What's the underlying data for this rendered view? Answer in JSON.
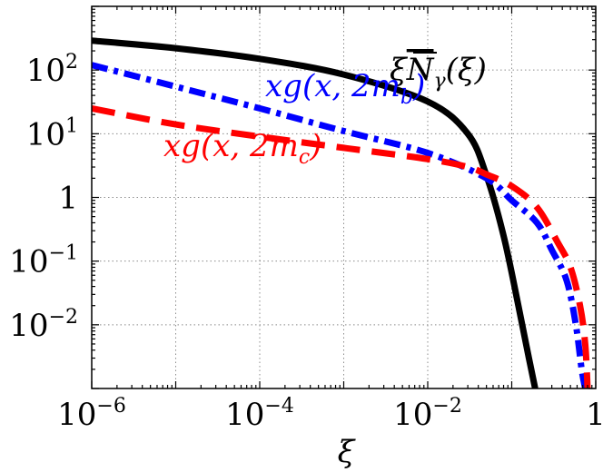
{
  "chart_data": {
    "type": "line",
    "xscale": "log",
    "yscale": "log",
    "xlim": [
      1e-06,
      1
    ],
    "ylim": [
      0.001,
      1000
    ],
    "grid": true,
    "xlabel": "ξ",
    "ylabel": "",
    "x_ticks": [
      {
        "value": 1e-06,
        "base": "10",
        "exp": "−6"
      },
      {
        "value": 0.0001,
        "base": "10",
        "exp": "−4"
      },
      {
        "value": 0.01,
        "base": "10",
        "exp": "−2"
      },
      {
        "value": 1,
        "base": "1",
        "exp": ""
      }
    ],
    "y_ticks": [
      {
        "value": 0.01,
        "base": "10",
        "exp": "−2"
      },
      {
        "value": 0.1,
        "base": "10",
        "exp": "−1"
      },
      {
        "value": 1,
        "base": "1",
        "exp": ""
      },
      {
        "value": 10,
        "base": "10",
        "exp": "1"
      },
      {
        "value": 100,
        "base": "10",
        "exp": "2"
      }
    ],
    "series": [
      {
        "label_parts": {
          "pre": "ξ",
          "over": "N",
          "sub": "γ",
          "post": "(ξ)"
        },
        "color": "#000000",
        "style": "solid",
        "x": [
          1e-06,
          1e-05,
          0.0001,
          0.001,
          0.01,
          0.03,
          0.05,
          0.08,
          0.12,
          0.16,
          0.19
        ],
        "y": [
          290,
          220,
          150,
          85,
          32,
          10,
          2.2,
          0.25,
          0.02,
          0.003,
          0.001
        ]
      },
      {
        "label_parts": {
          "pre": "xg(x, 2m",
          "sub": "b",
          "post": ")"
        },
        "color": "#0000ff",
        "style": "dashdot",
        "x": [
          1e-06,
          1e-05,
          0.0001,
          0.001,
          0.01,
          0.05,
          0.1,
          0.2,
          0.3,
          0.45,
          0.58,
          0.68,
          0.75
        ],
        "y": [
          120,
          55,
          25,
          11,
          5,
          2,
          0.9,
          0.4,
          0.15,
          0.05,
          0.01,
          0.002,
          0.001
        ]
      },
      {
        "label_parts": {
          "pre": "xg(x, 2m",
          "sub": "c",
          "post": ")"
        },
        "color": "#ff0000",
        "style": "dashed",
        "x": [
          1e-06,
          1e-05,
          0.0001,
          0.001,
          0.01,
          0.03,
          0.05,
          0.1,
          0.2,
          0.35,
          0.5,
          0.65,
          0.75,
          0.8
        ],
        "y": [
          25,
          14,
          9,
          6,
          4,
          3,
          2.3,
          1.5,
          0.7,
          0.2,
          0.08,
          0.02,
          0.005,
          0.001
        ]
      }
    ]
  }
}
